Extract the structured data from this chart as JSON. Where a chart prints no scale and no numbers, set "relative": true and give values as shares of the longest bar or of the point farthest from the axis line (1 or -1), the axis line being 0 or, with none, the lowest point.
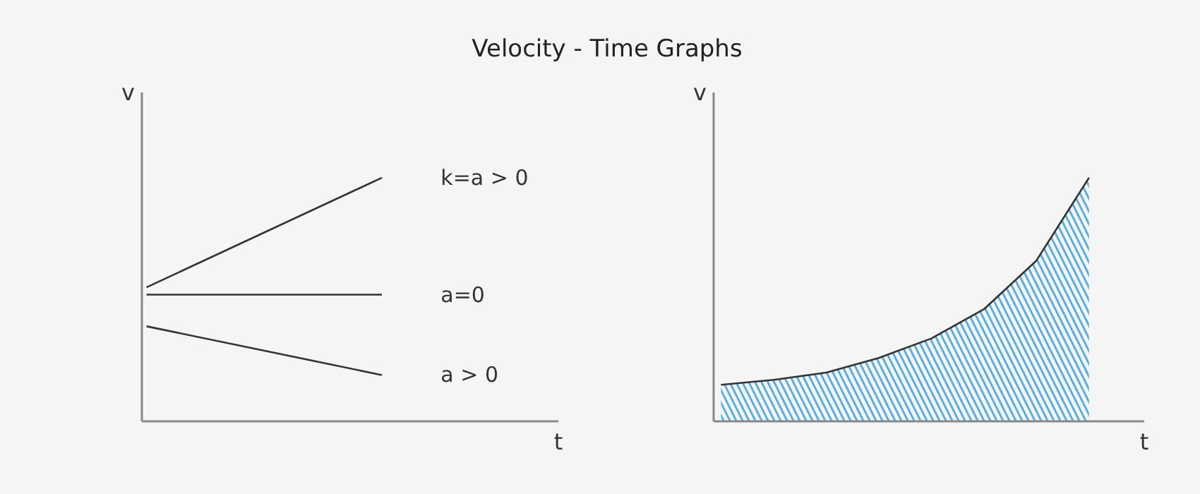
{
  "chart_data": [
    {
      "type": "line",
      "title": "Velocity - Time  Graphs",
      "relative": true,
      "xlabel": "t",
      "ylabel": "v",
      "categories": [
        null,
        null
      ],
      "series": [
        {
          "name": "k=a > 0",
          "color": "#333333",
          "values": [
            0.55,
            1
          ]
        },
        {
          "name": "a=0",
          "color": "#333333",
          "values": [
            0.52,
            0.52
          ]
        },
        {
          "name": "a > 0",
          "color": "#333333",
          "values": [
            0.39,
            0.19
          ]
        }
      ]
    },
    {
      "type": "area",
      "relative": true,
      "xlabel": "t",
      "ylabel": "v",
      "categories": [
        null,
        null,
        null,
        null,
        null,
        null,
        null,
        null
      ],
      "series": [
        {
          "color": "#5aaee0",
          "values": [
            0.15,
            0.17,
            0.2,
            0.26,
            0.34,
            0.46,
            0.66,
            1
          ]
        }
      ]
    }
  ]
}
